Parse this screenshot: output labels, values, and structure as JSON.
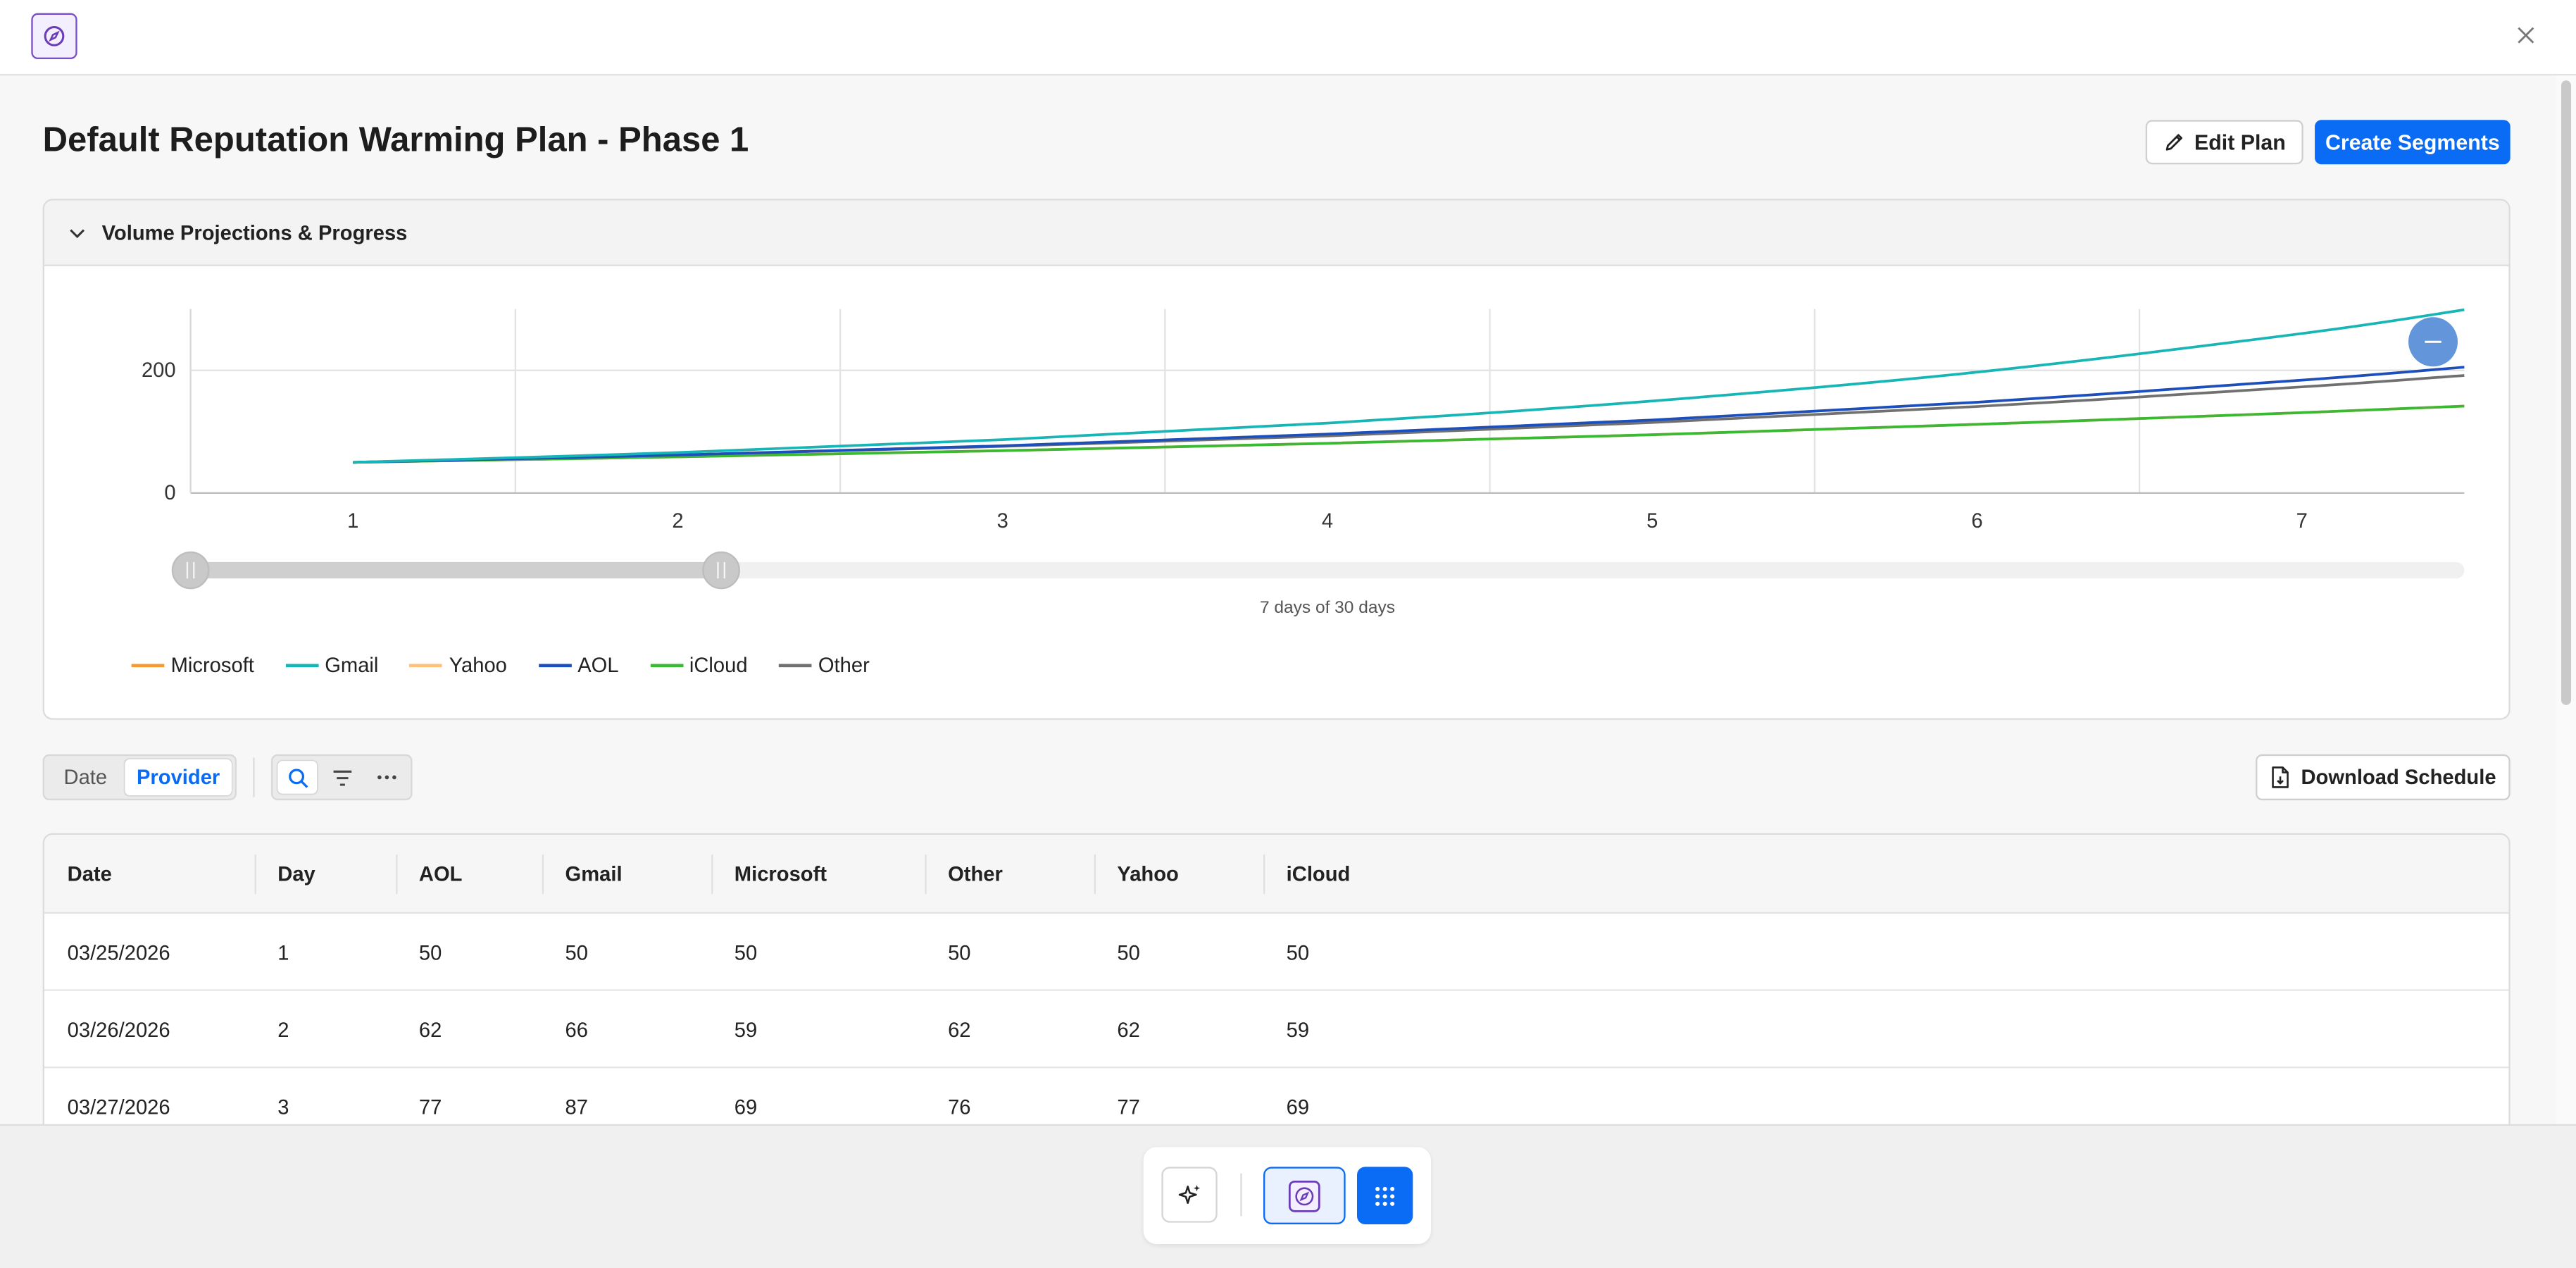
{
  "header": {
    "app_icon": "compass-icon",
    "close_icon": "close-icon"
  },
  "page": {
    "title": "Default Reputation Warming Plan - Phase 1",
    "edit_label": "Edit Plan",
    "create_label": "Create Segments"
  },
  "panel": {
    "title": "Volume Projections & Progress",
    "slider_caption": "7 days of 30 days"
  },
  "chart_data": {
    "type": "line",
    "x": [
      1,
      2,
      3,
      4,
      5,
      6,
      7
    ],
    "x_ticks": [
      "1",
      "2",
      "3",
      "4",
      "5",
      "6",
      "7"
    ],
    "y_ticks": [
      "0",
      "200"
    ],
    "ylim": [
      0,
      300
    ],
    "grid": true,
    "legend_position": "bottom-left",
    "series": [
      {
        "name": "Microsoft",
        "color": "#f59a33",
        "values": [
          50,
          59,
          69,
          81,
          95,
          112,
          131
        ]
      },
      {
        "name": "Gmail",
        "color": "#17b5b5",
        "values": [
          50,
          66,
          87,
          114,
          150,
          197,
          260
        ]
      },
      {
        "name": "Yahoo",
        "color": "#ffc07a",
        "values": [
          50,
          62,
          77,
          96,
          119,
          148,
          184
        ]
      },
      {
        "name": "AOL",
        "color": "#1b4fbd",
        "values": [
          50,
          62,
          77,
          96,
          119,
          148,
          184
        ]
      },
      {
        "name": "iCloud",
        "color": "#3cb934",
        "values": [
          50,
          59,
          69,
          81,
          95,
          112,
          131
        ]
      },
      {
        "name": "Other",
        "color": "#707070",
        "values": [
          50,
          62,
          76,
          93,
          115,
          141,
          173
        ]
      }
    ]
  },
  "toolbar": {
    "segments": [
      "Date",
      "Provider"
    ],
    "active_segment": "Provider",
    "download_label": "Download Schedule"
  },
  "table": {
    "columns": [
      "Date",
      "Day",
      "AOL",
      "Gmail",
      "Microsoft",
      "Other",
      "Yahoo",
      "iCloud"
    ],
    "rows": [
      [
        "03/25/2026",
        "1",
        "50",
        "50",
        "50",
        "50",
        "50",
        "50"
      ],
      [
        "03/26/2026",
        "2",
        "62",
        "66",
        "59",
        "62",
        "62",
        "59"
      ],
      [
        "03/27/2026",
        "3",
        "77",
        "87",
        "69",
        "76",
        "77",
        "69"
      ]
    ]
  },
  "dock": {
    "items": [
      "sparkle-icon",
      "compass-icon",
      "grid-icon"
    ]
  }
}
